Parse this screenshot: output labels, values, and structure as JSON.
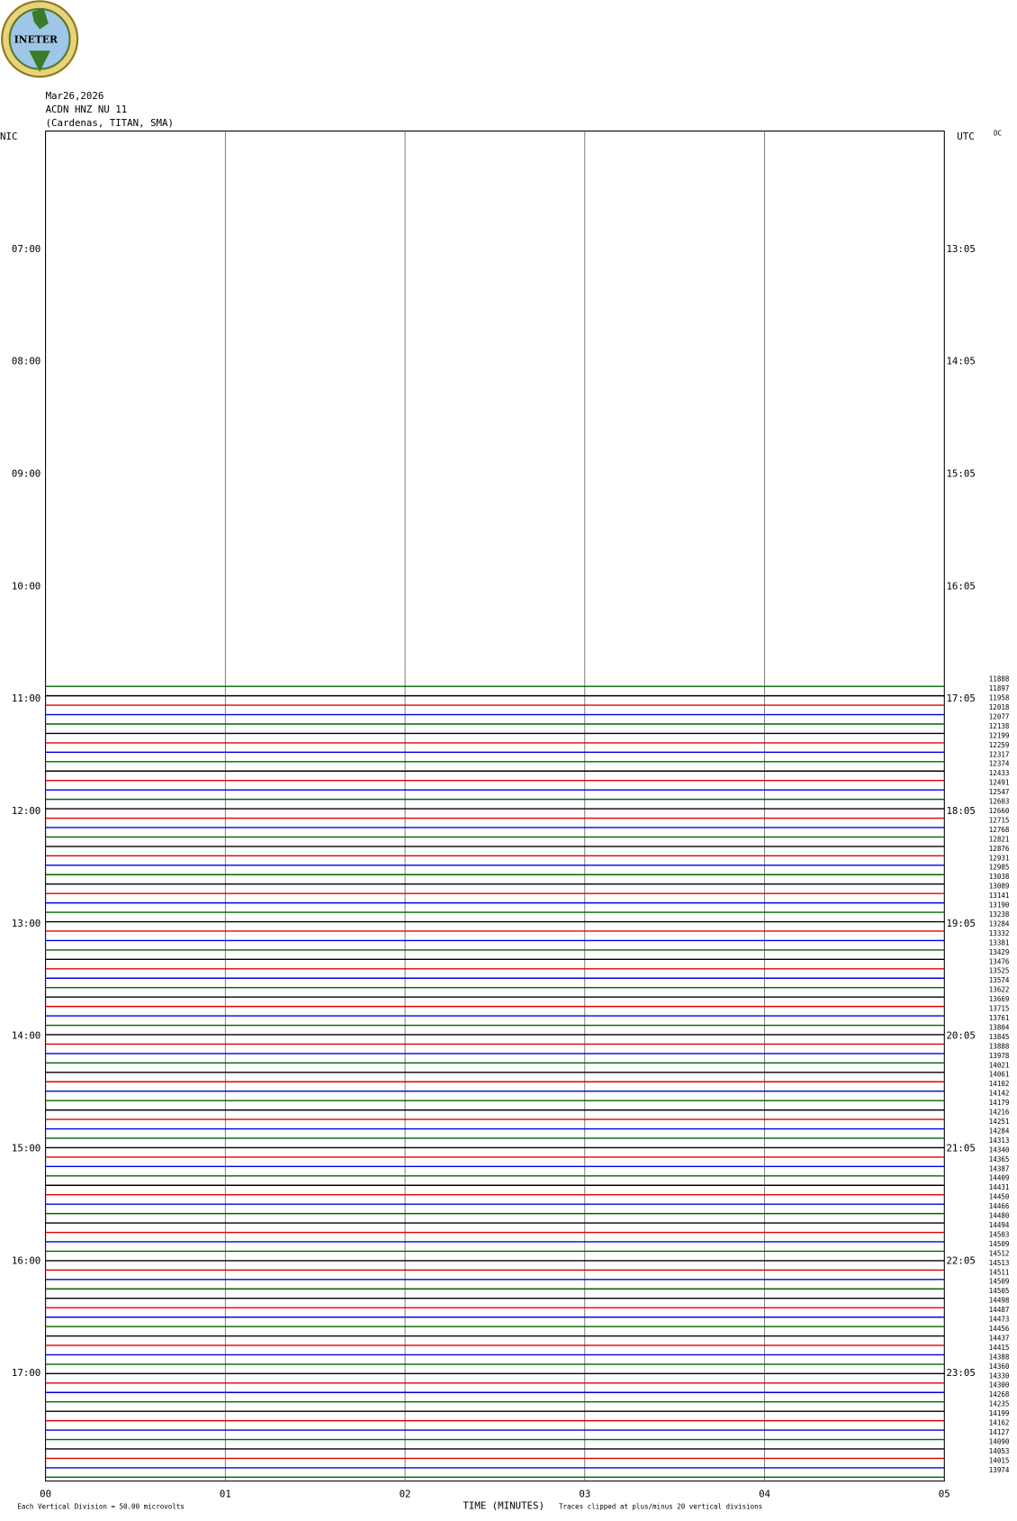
{
  "logo": "INETER",
  "header": {
    "date": "Mar26,2026",
    "station": "ACDN HNZ NU 11",
    "location": "(Cardenas, TITAN, SMA)"
  },
  "left_axis": {
    "title": "NIC",
    "labels": [
      "07:00",
      "08:00",
      "09:00",
      "10:00",
      "11:00",
      "12:00",
      "13:00",
      "14:00",
      "15:00",
      "16:00",
      "17:00"
    ]
  },
  "right_axis": {
    "title": "UTC",
    "labels": [
      "13:05",
      "14:05",
      "15:05",
      "16:05",
      "17:05",
      "18:05",
      "19:05",
      "20:05",
      "21:05",
      "22:05",
      "23:05"
    ]
  },
  "corner": "DC",
  "x_axis": {
    "title": "TIME (MINUTES)",
    "ticks": [
      "00",
      "01",
      "02",
      "03",
      "04",
      "05"
    ]
  },
  "footer": {
    "scale": "Each Vertical Division =   50.00 microvolts",
    "clip": "Traces clipped at plus/minus 20 vertical divisions"
  },
  "traces": {
    "colors": [
      "#006400",
      "#000000",
      "#e00000",
      "#0000e0"
    ],
    "labels": [
      11888,
      11897,
      11958,
      12018,
      12077,
      12138,
      12199,
      12259,
      12317,
      12374,
      12433,
      12491,
      12547,
      12603,
      12660,
      12715,
      12768,
      12821,
      12876,
      12931,
      12985,
      13038,
      13089,
      13141,
      13190,
      13238,
      13284,
      13332,
      13381,
      13429,
      13476,
      13525,
      13574,
      13622,
      13669,
      13715,
      13761,
      13804,
      13845,
      13888,
      13978,
      14021,
      14061,
      14102,
      14142,
      14179,
      14216,
      14251,
      14284,
      14313,
      14340,
      14365,
      14387,
      14409,
      14431,
      14450,
      14466,
      14480,
      14494,
      14503,
      14509,
      14512,
      14513,
      14511,
      14509,
      14505,
      14498,
      14487,
      14473,
      14456,
      14437,
      14415,
      14388,
      14360,
      14330,
      14300,
      14268,
      14235,
      14199,
      14162,
      14127,
      14090,
      14053,
      14015,
      13974
    ]
  }
}
